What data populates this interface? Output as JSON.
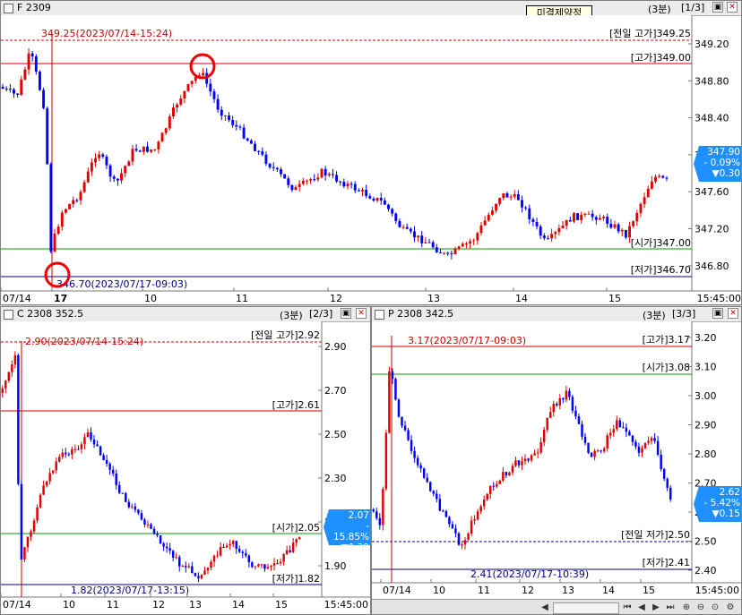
{
  "top": {
    "title": "F 2309",
    "timeframe": "(3분)",
    "page": "[1/3]",
    "tooltip": "미결제약정",
    "annot_high": "349.25(2023/07/14-15:24)",
    "annot_low": "346.70(2023/07/17-09:03)",
    "labels": {
      "prev_high": "[전일 고가]349.25",
      "high": "[고가]349.00",
      "open": "[시가]347.00",
      "low": "[저가]346.70"
    },
    "yticks": [
      "349.20",
      "348.80",
      "348.40",
      "348.00",
      "347.60",
      "347.20",
      "346.80"
    ],
    "xticks": [
      "07/14",
      "17",
      "10",
      "11",
      "12",
      "13",
      "14",
      "15"
    ],
    "end_time": "15:45:00",
    "badge": [
      "347.90",
      "- 0.09%",
      "▼0.30"
    ],
    "colors": {
      "up": "#e00000",
      "down": "#0000ff",
      "badge": "#1e90ff"
    }
  },
  "bl": {
    "title": "C 2308 352.5",
    "timeframe": "(3분)",
    "page": "[2/3]",
    "annot_high": "2.90(2023/07/14-15:24)",
    "annot_low": "1.82(2023/07/17-13:15)",
    "labels": {
      "prev_high": "[전일 고가]2.92",
      "high": "[고가]2.61",
      "open": "[시가]2.05",
      "low": "[저가]1.82"
    },
    "yticks": [
      "2.90",
      "2.70",
      "2.50",
      "2.30",
      "2.10",
      "1.90"
    ],
    "xticks": [
      "07/14",
      "10",
      "11",
      "12",
      "13",
      "14",
      "15"
    ],
    "end_time": "15:45:00",
    "badge": [
      "2.07",
      "- 15.85%",
      "▼0.39"
    ]
  },
  "br": {
    "title": "P 2308 342.5",
    "timeframe": "(3분)",
    "page": "[3/3]",
    "annot_high": "3.17(2023/07/17-09:03)",
    "annot_low": "2.41(2023/07/17-10:39)",
    "labels": {
      "high": "[고가]3.17",
      "open": "[시가]3.08",
      "prev_low": "[전일 저가]2.50",
      "low": "[저가]2.41"
    },
    "yticks": [
      "3.20",
      "3.10",
      "3.00",
      "2.90",
      "2.80",
      "2.70",
      "2.60",
      "2.50",
      "2.40"
    ],
    "xticks": [
      "07/14",
      "10",
      "11",
      "12",
      "13",
      "14",
      "15"
    ],
    "end_time": "15:45:00",
    "badge": [
      "2.62",
      "- 5.42%",
      "▼0.15"
    ]
  }
}
